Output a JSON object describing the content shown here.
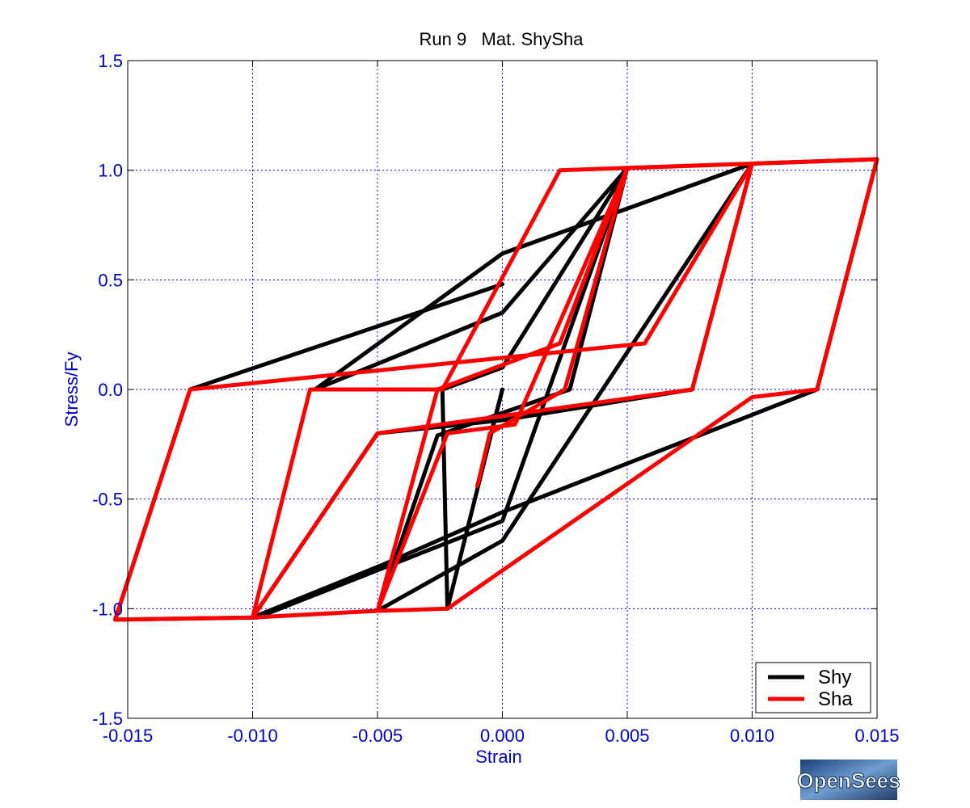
{
  "chart_data": {
    "type": "line",
    "title": "Run 9   Mat. ShySha",
    "xlabel": "Strain",
    "ylabel": "Stress/Fy",
    "xlim": [
      -0.015,
      0.015
    ],
    "ylim": [
      -1.5,
      1.5
    ],
    "xticks": [
      -0.015,
      -0.01,
      -0.005,
      0.0,
      0.005,
      0.01,
      0.015
    ],
    "xtick_labels": [
      "-0.015",
      "-0.010",
      "-0.005",
      "0.000",
      "0.005",
      "0.010",
      "0.015"
    ],
    "yticks": [
      1.5,
      1.0,
      0.5,
      0.0,
      -0.5,
      -1.0,
      -1.5
    ],
    "ytick_labels": [
      "1.5",
      "1.0",
      "0.5",
      "0.0",
      "-0.5",
      "-1.0",
      "-1.5"
    ],
    "grid": true,
    "legend_position": "bottom-right",
    "series": [
      {
        "name": "Shy",
        "color": "#000000",
        "points": [
          [
            0.0,
            0.48
          ],
          [
            -0.0125,
            0.0
          ],
          [
            -0.0155,
            -1.05
          ],
          [
            -0.0098,
            -1.04
          ],
          [
            0.0,
            -0.6
          ],
          [
            0.005,
            1.01
          ],
          [
            0.0027,
            0.0
          ],
          [
            -0.0026,
            -0.21
          ],
          [
            -0.005,
            -1.01
          ],
          [
            0.0,
            -0.69
          ],
          [
            0.01,
            1.03
          ],
          [
            0.0076,
            0.0
          ],
          [
            0.0,
            -0.14
          ],
          [
            -0.005,
            -0.2
          ],
          [
            -0.01,
            -1.04
          ],
          [
            -0.0048,
            -0.8
          ],
          [
            0.0,
            -0.56
          ],
          [
            0.0126,
            0.0
          ],
          [
            0.015,
            1.05
          ],
          [
            0.01,
            1.03
          ],
          [
            0.0,
            0.62
          ],
          [
            -0.0075,
            0.0
          ],
          [
            0.0,
            0.35
          ],
          [
            0.005,
            1.01
          ],
          [
            0.0,
            0.1
          ],
          [
            -0.0024,
            0.0
          ],
          [
            -0.0022,
            -1.0
          ],
          [
            0.0,
            0.0
          ],
          [
            -0.001,
            -0.44
          ]
        ]
      },
      {
        "name": "Sha",
        "color": "#ff0000",
        "points": [
          [
            -0.001,
            -0.44
          ],
          [
            -0.0005,
            -0.2
          ],
          [
            0.0025,
            0.0
          ],
          [
            0.005,
            1.01
          ],
          [
            0.0023,
            0.21
          ],
          [
            -0.0026,
            0.0
          ],
          [
            -0.005,
            -1.01
          ],
          [
            -0.0022,
            -1.0
          ],
          [
            0.01,
            -0.035
          ],
          [
            0.0126,
            0.0
          ],
          [
            0.015,
            1.05
          ],
          [
            0.0023,
            1.0
          ],
          [
            -0.0024,
            0.0
          ],
          [
            -0.0077,
            0.0
          ],
          [
            -0.01,
            -1.04
          ],
          [
            -0.005,
            -0.2
          ],
          [
            0.0076,
            0.0
          ],
          [
            0.01,
            1.03
          ],
          [
            0.0057,
            0.21
          ],
          [
            -0.0125,
            0.0
          ],
          [
            -0.0155,
            -1.05
          ],
          [
            -0.01,
            -1.04
          ],
          [
            -0.005,
            -1.01
          ],
          [
            -0.0022,
            -0.2
          ],
          [
            0.0005,
            -0.16
          ],
          [
            0.005,
            1.01
          ],
          [
            0.01,
            1.03
          ],
          [
            0.015,
            1.05
          ]
        ]
      }
    ]
  },
  "logo": {
    "text": "OpenSees"
  }
}
